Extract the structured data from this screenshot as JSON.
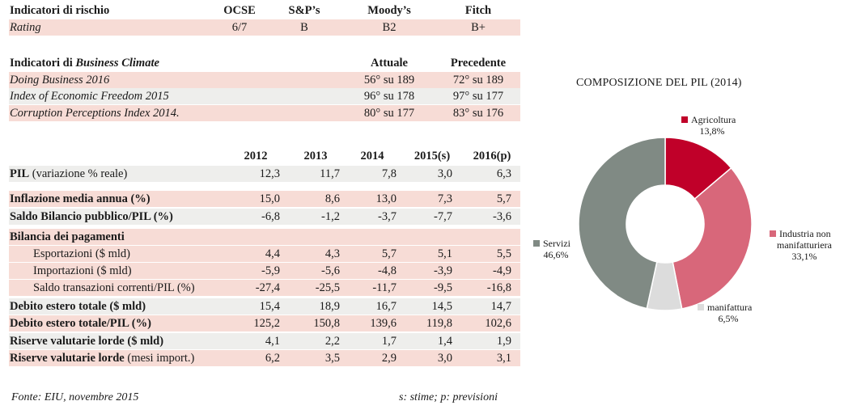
{
  "risk_table": {
    "header": [
      "Indicatori di rischio",
      "OCSE",
      "S&P’s",
      "Moody’s",
      "Fitch"
    ],
    "row": [
      "Rating",
      "6/7",
      "B",
      "B2",
      "B+"
    ]
  },
  "business_climate": {
    "header_prefix": "Indicatori di ",
    "header_italic": "Business Climate",
    "col_current": "Attuale",
    "col_previous": "Precedente",
    "rows": [
      {
        "label": "Doing Business 2016",
        "current": "56° su 189",
        "previous": "72° su 189"
      },
      {
        "label": "Index of Economic Freedom 2015",
        "current": "96° su 178",
        "previous": "97° su 177"
      },
      {
        "label": "Corruption Perceptions Index 2014.",
        "current": "80° su 177",
        "previous": "83° su 176"
      }
    ]
  },
  "econ_table": {
    "years": [
      "2012",
      "2013",
      "2014",
      "2015(s)",
      "2016(p)"
    ],
    "rows": [
      {
        "label_bold": "PIL",
        "label_rest": " (variazione % reale)",
        "values": [
          "12,3",
          "11,7",
          "7,8",
          "3,0",
          "6,3"
        ]
      },
      {
        "label_bold": "Inflazione media annua (%)",
        "label_rest": "",
        "values": [
          "15,0",
          "8,6",
          "13,0",
          "7,3",
          "5,7"
        ]
      },
      {
        "label_bold": "Saldo Bilancio pubblico/PIL (%)",
        "label_rest": "",
        "values": [
          "-6,8",
          "-1,2",
          "-3,7",
          "-7,7",
          "-3,6"
        ]
      },
      {
        "label_bold": "Bilancia dei pagamenti",
        "label_rest": "",
        "values": [
          "",
          "",
          "",
          "",
          ""
        ]
      },
      {
        "label_bold": "",
        "label_rest": "Esportazioni ($ mld)",
        "values": [
          "4,4",
          "4,3",
          "5,7",
          "5,1",
          "5,5"
        ]
      },
      {
        "label_bold": "",
        "label_rest": "Importazioni ($ mld)",
        "values": [
          "-5,9",
          "-5,6",
          "-4,8",
          "-3,9",
          "-4,9"
        ]
      },
      {
        "label_bold": "",
        "label_rest": "Saldo transazioni correnti/PIL (%)",
        "values": [
          "-27,4",
          "-25,5",
          "-11,7",
          "-9,5",
          "-16,8"
        ]
      },
      {
        "label_bold": "Debito estero totale ($ mld)",
        "label_rest": "",
        "values": [
          "15,4",
          "18,9",
          "16,7",
          "14,5",
          "14,7"
        ]
      },
      {
        "label_bold": "Debito estero totale/PIL (%)",
        "label_rest": "",
        "values": [
          "125,2",
          "150,8",
          "139,6",
          "119,8",
          "102,6"
        ]
      },
      {
        "label_bold": "Riserve valutarie lorde ($ mld)",
        "label_rest": "",
        "values": [
          "4,1",
          "2,2",
          "1,7",
          "1,4",
          "1,9"
        ]
      },
      {
        "label_bold": "Riserve valutarie lorde",
        "label_rest": " (mesi import.)",
        "values": [
          "6,2",
          "3,5",
          "2,9",
          "3,0",
          "3,1"
        ]
      }
    ]
  },
  "footer": {
    "source": "Fonte: EIU, novembre 2015",
    "note": "s: stime; p: previsioni"
  },
  "chart_data": {
    "type": "pie",
    "title": "COMPOSIZIONE DEL PIL (2014)",
    "slices": [
      {
        "label": "Agricoltura",
        "value": 13.8,
        "display": "13,8%",
        "color": "#c00029"
      },
      {
        "label": "Industria non manifatturiera",
        "value": 33.1,
        "display": "33,1%",
        "color": "#d8677a"
      },
      {
        "label": "manifattura",
        "value": 6.5,
        "display": "6,5%",
        "color": "#dcdcdc"
      },
      {
        "label": "Servizi",
        "value": 46.6,
        "display": "46,6%",
        "color": "#808a84"
      }
    ],
    "donut": true
  }
}
